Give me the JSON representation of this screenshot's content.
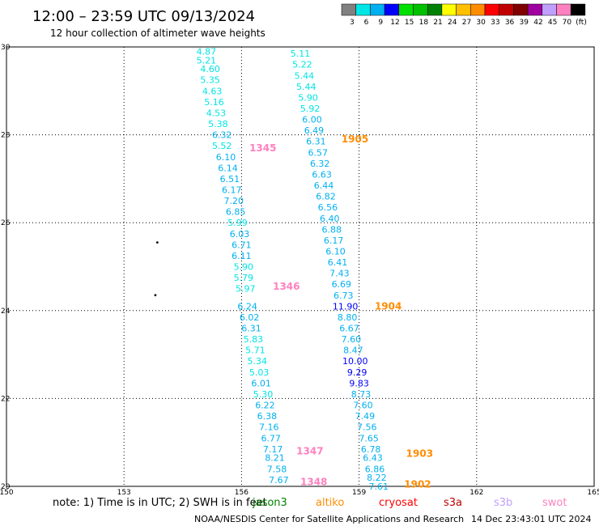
{
  "title": "12:00 – 23:59 UTC 09/13/2024",
  "subtitle": "12 hour collection of altimeter wave heights",
  "legend": {
    "colors": [
      "#808080",
      "#00e5e5",
      "#00b0f0",
      "#0000ff",
      "#00e000",
      "#00c000",
      "#008000",
      "#ffff00",
      "#ffc000",
      "#ff8c00",
      "#ff0000",
      "#c00000",
      "#800000",
      "#a000a0",
      "#c0a0ff",
      "#ff80c0",
      "#000000"
    ],
    "labels": [
      "3",
      "6",
      "9",
      "12",
      "15",
      "18",
      "21",
      "24",
      "27",
      "30",
      "33",
      "36",
      "39",
      "42",
      "45",
      "70",
      "(ft)"
    ]
  },
  "chart_data": {
    "type": "scatter",
    "xlim": [
      150,
      165
    ],
    "ylim": [
      20,
      30
    ],
    "x_ticks": [
      "150",
      "153",
      "156",
      "159",
      "162",
      "165"
    ],
    "y_ticks": [
      "20",
      "22",
      "24",
      "26",
      "28",
      "30"
    ],
    "grid": true,
    "points": [
      {
        "x": 155.1,
        "y": 29.9,
        "v": "4.87",
        "c": "#00e5e5"
      },
      {
        "x": 155.1,
        "y": 29.7,
        "v": "5.21",
        "c": "#00e5e5"
      },
      {
        "x": 155.2,
        "y": 29.5,
        "v": "4.60",
        "c": "#00e5e5"
      },
      {
        "x": 155.2,
        "y": 29.25,
        "v": "5.35",
        "c": "#00e5e5"
      },
      {
        "x": 155.25,
        "y": 29.0,
        "v": "4.63",
        "c": "#00e5e5"
      },
      {
        "x": 155.3,
        "y": 28.75,
        "v": "5.16",
        "c": "#00e5e5"
      },
      {
        "x": 155.35,
        "y": 28.5,
        "v": "4.53",
        "c": "#00e5e5"
      },
      {
        "x": 155.4,
        "y": 28.25,
        "v": "5.38",
        "c": "#00e5e5"
      },
      {
        "x": 155.5,
        "y": 28.0,
        "v": "6.32",
        "c": "#00b0f0"
      },
      {
        "x": 155.5,
        "y": 27.75,
        "v": "5.52",
        "c": "#00e5e5"
      },
      {
        "x": 155.6,
        "y": 27.5,
        "v": "6.10",
        "c": "#00b0f0"
      },
      {
        "x": 155.65,
        "y": 27.25,
        "v": "6.14",
        "c": "#00b0f0"
      },
      {
        "x": 155.7,
        "y": 27.0,
        "v": "6.51",
        "c": "#00b0f0"
      },
      {
        "x": 155.75,
        "y": 26.75,
        "v": "6.17",
        "c": "#00b0f0"
      },
      {
        "x": 155.8,
        "y": 26.5,
        "v": "7.20",
        "c": "#00b0f0"
      },
      {
        "x": 155.85,
        "y": 26.25,
        "v": "6.85",
        "c": "#00b0f0"
      },
      {
        "x": 155.9,
        "y": 26.0,
        "v": "5.99",
        "c": "#00e5e5"
      },
      {
        "x": 155.95,
        "y": 25.75,
        "v": "6.03",
        "c": "#00b0f0"
      },
      {
        "x": 156.0,
        "y": 25.5,
        "v": "6.71",
        "c": "#00b0f0"
      },
      {
        "x": 156.0,
        "y": 25.25,
        "v": "6.11",
        "c": "#00b0f0"
      },
      {
        "x": 156.05,
        "y": 25.0,
        "v": "5.90",
        "c": "#00e5e5"
      },
      {
        "x": 156.05,
        "y": 24.75,
        "v": "5.79",
        "c": "#00e5e5"
      },
      {
        "x": 156.1,
        "y": 24.5,
        "v": "5.97",
        "c": "#00e5e5"
      },
      {
        "x": 156.15,
        "y": 24.1,
        "v": "6.24",
        "c": "#00b0f0"
      },
      {
        "x": 156.2,
        "y": 23.85,
        "v": "6.02",
        "c": "#00b0f0"
      },
      {
        "x": 156.25,
        "y": 23.6,
        "v": "6.31",
        "c": "#00b0f0"
      },
      {
        "x": 156.3,
        "y": 23.35,
        "v": "5.83",
        "c": "#00e5e5"
      },
      {
        "x": 156.35,
        "y": 23.1,
        "v": "5.71",
        "c": "#00e5e5"
      },
      {
        "x": 156.4,
        "y": 22.85,
        "v": "5.34",
        "c": "#00e5e5"
      },
      {
        "x": 156.45,
        "y": 22.6,
        "v": "5.03",
        "c": "#00e5e5"
      },
      {
        "x": 156.5,
        "y": 22.35,
        "v": "6.01",
        "c": "#00b0f0"
      },
      {
        "x": 156.55,
        "y": 22.1,
        "v": "5.30",
        "c": "#00e5e5"
      },
      {
        "x": 156.6,
        "y": 21.85,
        "v": "6.22",
        "c": "#00b0f0"
      },
      {
        "x": 156.65,
        "y": 21.6,
        "v": "6.38",
        "c": "#00b0f0"
      },
      {
        "x": 156.7,
        "y": 21.35,
        "v": "7.16",
        "c": "#00b0f0"
      },
      {
        "x": 156.75,
        "y": 21.1,
        "v": "6.77",
        "c": "#00b0f0"
      },
      {
        "x": 156.8,
        "y": 20.85,
        "v": "7.17",
        "c": "#00b0f0"
      },
      {
        "x": 156.85,
        "y": 20.65,
        "v": "8.21",
        "c": "#00b0f0"
      },
      {
        "x": 156.9,
        "y": 20.4,
        "v": "7.58",
        "c": "#00b0f0"
      },
      {
        "x": 156.95,
        "y": 20.15,
        "v": "7.67",
        "c": "#00b0f0"
      },
      {
        "x": 157.5,
        "y": 29.85,
        "v": "5.11",
        "c": "#00e5e5"
      },
      {
        "x": 157.55,
        "y": 29.6,
        "v": "5.22",
        "c": "#00e5e5"
      },
      {
        "x": 157.6,
        "y": 29.35,
        "v": "5.44",
        "c": "#00e5e5"
      },
      {
        "x": 157.65,
        "y": 29.1,
        "v": "5.44",
        "c": "#00e5e5"
      },
      {
        "x": 157.7,
        "y": 28.85,
        "v": "5.90",
        "c": "#00e5e5"
      },
      {
        "x": 157.75,
        "y": 28.6,
        "v": "5.92",
        "c": "#00e5e5"
      },
      {
        "x": 157.8,
        "y": 28.35,
        "v": "6.00",
        "c": "#00b0f0"
      },
      {
        "x": 157.85,
        "y": 28.1,
        "v": "6.49",
        "c": "#00b0f0"
      },
      {
        "x": 157.9,
        "y": 27.85,
        "v": "6.31",
        "c": "#00b0f0"
      },
      {
        "x": 157.95,
        "y": 27.6,
        "v": "6.57",
        "c": "#00b0f0"
      },
      {
        "x": 158.0,
        "y": 27.35,
        "v": "6.32",
        "c": "#00b0f0"
      },
      {
        "x": 158.05,
        "y": 27.1,
        "v": "6.63",
        "c": "#00b0f0"
      },
      {
        "x": 158.1,
        "y": 26.85,
        "v": "6.44",
        "c": "#00b0f0"
      },
      {
        "x": 158.15,
        "y": 26.6,
        "v": "6.82",
        "c": "#00b0f0"
      },
      {
        "x": 158.2,
        "y": 26.35,
        "v": "6.56",
        "c": "#00b0f0"
      },
      {
        "x": 158.25,
        "y": 26.1,
        "v": "6.40",
        "c": "#00b0f0"
      },
      {
        "x": 158.3,
        "y": 25.85,
        "v": "6.88",
        "c": "#00b0f0"
      },
      {
        "x": 158.35,
        "y": 25.6,
        "v": "6.17",
        "c": "#00b0f0"
      },
      {
        "x": 158.4,
        "y": 25.35,
        "v": "6.10",
        "c": "#00b0f0"
      },
      {
        "x": 158.45,
        "y": 25.1,
        "v": "6.41",
        "c": "#00b0f0"
      },
      {
        "x": 158.5,
        "y": 24.85,
        "v": "7.43",
        "c": "#00b0f0"
      },
      {
        "x": 158.55,
        "y": 24.6,
        "v": "6.69",
        "c": "#00b0f0"
      },
      {
        "x": 158.6,
        "y": 24.35,
        "v": "6.73",
        "c": "#00b0f0"
      },
      {
        "x": 158.65,
        "y": 24.1,
        "v": "11.90",
        "c": "#0000ff"
      },
      {
        "x": 158.7,
        "y": 23.85,
        "v": "8.80",
        "c": "#00b0f0"
      },
      {
        "x": 158.75,
        "y": 23.6,
        "v": "6.67",
        "c": "#00b0f0"
      },
      {
        "x": 158.8,
        "y": 23.35,
        "v": "7.60",
        "c": "#00b0f0"
      },
      {
        "x": 158.85,
        "y": 23.1,
        "v": "8.47",
        "c": "#00b0f0"
      },
      {
        "x": 158.9,
        "y": 22.85,
        "v": "10.00",
        "c": "#0000ff"
      },
      {
        "x": 158.95,
        "y": 22.6,
        "v": "9.29",
        "c": "#0000ff"
      },
      {
        "x": 159.0,
        "y": 22.35,
        "v": "9.83",
        "c": "#0000ff"
      },
      {
        "x": 159.05,
        "y": 22.1,
        "v": "8.73",
        "c": "#00b0f0"
      },
      {
        "x": 159.1,
        "y": 21.85,
        "v": "7.60",
        "c": "#00b0f0"
      },
      {
        "x": 159.15,
        "y": 21.6,
        "v": "7.49",
        "c": "#00b0f0"
      },
      {
        "x": 159.2,
        "y": 21.35,
        "v": "7.56",
        "c": "#00b0f0"
      },
      {
        "x": 159.25,
        "y": 21.1,
        "v": "7.65",
        "c": "#00b0f0"
      },
      {
        "x": 159.3,
        "y": 20.85,
        "v": "6.78",
        "c": "#00b0f0"
      },
      {
        "x": 159.35,
        "y": 20.65,
        "v": "6.43",
        "c": "#00b0f0"
      },
      {
        "x": 159.4,
        "y": 20.4,
        "v": "6.86",
        "c": "#00b0f0"
      },
      {
        "x": 159.45,
        "y": 20.2,
        "v": "8.22",
        "c": "#00b0f0"
      },
      {
        "x": 159.5,
        "y": 20.0,
        "v": "7.61",
        "c": "#00b0f0"
      }
    ],
    "time_labels": [
      {
        "x": 156.2,
        "y": 27.7,
        "t": "1345",
        "c": "#ff80c0"
      },
      {
        "x": 156.8,
        "y": 24.55,
        "t": "1346",
        "c": "#ff80c0"
      },
      {
        "x": 157.4,
        "y": 20.8,
        "t": "1347",
        "c": "#ff80c0"
      },
      {
        "x": 157.5,
        "y": 20.1,
        "t": "1348",
        "c": "#ff80c0"
      },
      {
        "x": 158.55,
        "y": 27.9,
        "t": "1905",
        "c": "#ff8c00"
      },
      {
        "x": 159.4,
        "y": 24.1,
        "t": "1904",
        "c": "#ff8c00"
      },
      {
        "x": 160.2,
        "y": 20.75,
        "t": "1903",
        "c": "#ff8c00"
      },
      {
        "x": 160.15,
        "y": 20.05,
        "t": "1902",
        "c": "#ff8c00"
      }
    ],
    "markers": [
      {
        "x": 153.85,
        "y": 25.55
      },
      {
        "x": 153.8,
        "y": 24.35
      }
    ]
  },
  "note": "note: 1) Time is in UTC; 2) SWH is in feet",
  "satellites": [
    {
      "name": "jason3",
      "c": "#008000"
    },
    {
      "name": "altiko",
      "c": "#ff8c00"
    },
    {
      "name": "cryosat",
      "c": "#ff0000"
    },
    {
      "name": "s3a",
      "c": "#c00000"
    },
    {
      "name": "s3b",
      "c": "#c0a0ff"
    },
    {
      "name": "swot",
      "c": "#ff80c0"
    }
  ],
  "footer_left": "NOAA/NESDIS Center for Satellite Applications and Research",
  "footer_right": "14 Dec 23:43:01 UTC 2024"
}
